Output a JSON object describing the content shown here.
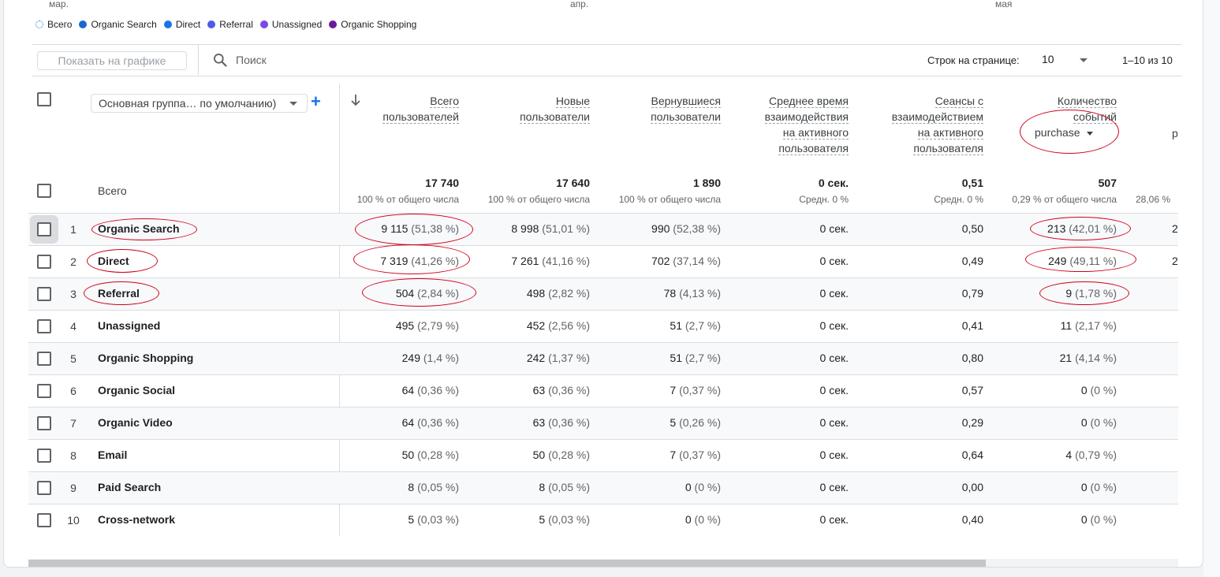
{
  "chart_axis": {
    "labels": [
      "мар.",
      "апр.",
      "мая"
    ]
  },
  "legend": [
    {
      "label": "Всего",
      "color": "#1a73e8",
      "style": "dashed"
    },
    {
      "label": "Organic Search",
      "color": "#1967d2"
    },
    {
      "label": "Direct",
      "color": "#1a73e8"
    },
    {
      "label": "Referral",
      "color": "#4e5ae8"
    },
    {
      "label": "Unassigned",
      "color": "#7b49e6"
    },
    {
      "label": "Organic Shopping",
      "color": "#6a1b9a"
    }
  ],
  "toolbar": {
    "show_on_chart": "Показать на графике",
    "search_placeholder": "Поиск",
    "rows_per_page_label": "Строк на странице:",
    "rows_per_page_value": "10",
    "pagination": "1–10 из 10"
  },
  "dimension_select": "Основная группа… по умолчанию)",
  "event_select": "purchase",
  "partial_col": {
    "head": "р",
    "total_sub": "28,06 %",
    "row1": "2",
    "row2": "2"
  },
  "columns": [
    {
      "label1": "Всего",
      "label2": "пользователей",
      "label3": "",
      "label4": ""
    },
    {
      "label1": "Новые",
      "label2": "пользователи",
      "label3": "",
      "label4": ""
    },
    {
      "label1": "Вернувшиеся",
      "label2": "пользователи",
      "label3": "",
      "label4": ""
    },
    {
      "label1": "Среднее время",
      "label2": "взаимодействия",
      "label3": "на активного",
      "label4": "пользователя"
    },
    {
      "label1": "Сеансы с",
      "label2": "взаимодействием",
      "label3": "на активного",
      "label4": "пользователя"
    },
    {
      "label1": "Количество",
      "label2": "событий",
      "label3": "",
      "label4": ""
    }
  ],
  "totals": {
    "label": "Всего",
    "values": [
      "17 740",
      "17 640",
      "1 890",
      "0 сек.",
      "0,51",
      "507"
    ],
    "subs": [
      "100 % от общего числа",
      "100 % от общего числа",
      "100 % от общего числа",
      "Средн. 0 %",
      "Средн. 0 %",
      "0,29 % от общего числа"
    ]
  },
  "rows": [
    {
      "num": "1",
      "name": "Organic Search",
      "c1v": "9 115",
      "c1p": "(51,38 %)",
      "c2v": "8 998",
      "c2p": "(51,01 %)",
      "c3v": "990",
      "c3p": "(52,38 %)",
      "c4": "0 сек.",
      "c5": "0,50",
      "c6v": "213",
      "c6p": "(42,01 %)"
    },
    {
      "num": "2",
      "name": "Direct",
      "c1v": "7 319",
      "c1p": "(41,26 %)",
      "c2v": "7 261",
      "c2p": "(41,16 %)",
      "c3v": "702",
      "c3p": "(37,14 %)",
      "c4": "0 сек.",
      "c5": "0,49",
      "c6v": "249",
      "c6p": "(49,11 %)"
    },
    {
      "num": "3",
      "name": "Referral",
      "c1v": "504",
      "c1p": "(2,84 %)",
      "c2v": "498",
      "c2p": "(2,82 %)",
      "c3v": "78",
      "c3p": "(4,13 %)",
      "c4": "0 сек.",
      "c5": "0,79",
      "c6v": "9",
      "c6p": "(1,78 %)"
    },
    {
      "num": "4",
      "name": "Unassigned",
      "c1v": "495",
      "c1p": "(2,79 %)",
      "c2v": "452",
      "c2p": "(2,56 %)",
      "c3v": "51",
      "c3p": "(2,7 %)",
      "c4": "0 сек.",
      "c5": "0,41",
      "c6v": "11",
      "c6p": "(2,17 %)"
    },
    {
      "num": "5",
      "name": "Organic Shopping",
      "c1v": "249",
      "c1p": "(1,4 %)",
      "c2v": "242",
      "c2p": "(1,37 %)",
      "c3v": "51",
      "c3p": "(2,7 %)",
      "c4": "0 сек.",
      "c5": "0,80",
      "c6v": "21",
      "c6p": "(4,14 %)"
    },
    {
      "num": "6",
      "name": "Organic Social",
      "c1v": "64",
      "c1p": "(0,36 %)",
      "c2v": "63",
      "c2p": "(0,36 %)",
      "c3v": "7",
      "c3p": "(0,37 %)",
      "c4": "0 сек.",
      "c5": "0,57",
      "c6v": "0",
      "c6p": "(0 %)"
    },
    {
      "num": "7",
      "name": "Organic Video",
      "c1v": "64",
      "c1p": "(0,36 %)",
      "c2v": "63",
      "c2p": "(0,36 %)",
      "c3v": "5",
      "c3p": "(0,26 %)",
      "c4": "0 сек.",
      "c5": "0,29",
      "c6v": "0",
      "c6p": "(0 %)"
    },
    {
      "num": "8",
      "name": "Email",
      "c1v": "50",
      "c1p": "(0,28 %)",
      "c2v": "50",
      "c2p": "(0,28 %)",
      "c3v": "7",
      "c3p": "(0,37 %)",
      "c4": "0 сек.",
      "c5": "0,64",
      "c6v": "4",
      "c6p": "(0,79 %)"
    },
    {
      "num": "9",
      "name": "Paid Search",
      "c1v": "8",
      "c1p": "(0,05 %)",
      "c2v": "8",
      "c2p": "(0,05 %)",
      "c3v": "0",
      "c3p": "(0 %)",
      "c4": "0 сек.",
      "c5": "0,00",
      "c6v": "0",
      "c6p": "(0 %)"
    },
    {
      "num": "10",
      "name": "Cross-network",
      "c1v": "5",
      "c1p": "(0,03 %)",
      "c2v": "5",
      "c2p": "(0,03 %)",
      "c3v": "0",
      "c3p": "(0 %)",
      "c4": "0 сек.",
      "c5": "0,40",
      "c6v": "0",
      "c6p": "(0 %)"
    }
  ]
}
